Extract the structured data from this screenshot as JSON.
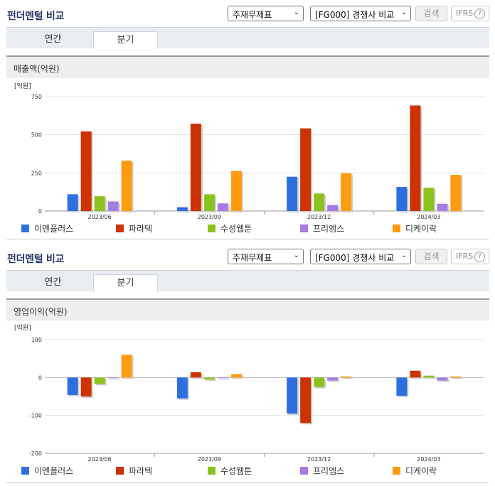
{
  "panels": [
    {
      "title": "펀더멘털 비교",
      "statement_select": "주재무제표",
      "peer_select": "[FG000] 경쟁사 비교",
      "search_label": "검색",
      "ifrs_label": "IFRS",
      "help_glyph": "?",
      "tabs": [
        {
          "label": "연간",
          "active": false
        },
        {
          "label": "분기",
          "active": true
        }
      ],
      "metric_title": "매출액(억원)"
    },
    {
      "title": "펀더멘털 비교",
      "statement_select": "주재무제표",
      "peer_select": "[FG000] 경쟁사 비교",
      "search_label": "검색",
      "ifrs_label": "IFRS",
      "help_glyph": "?",
      "tabs": [
        {
          "label": "연간",
          "active": false
        },
        {
          "label": "분기",
          "active": true
        }
      ],
      "metric_title": "영업이익(억원)"
    }
  ],
  "colors": {
    "이엔플러스": "#2e6fe0",
    "파라텍": "#cc3300",
    "수성웹툰": "#8cc21f",
    "프리엠스": "#a77de0",
    "디케이락": "#ff9b0f"
  },
  "chart_data": [
    {
      "type": "bar",
      "unit_label": "[억원]",
      "categories": [
        "2023/06",
        "2023/09",
        "2023/12",
        "2024/03"
      ],
      "ylim": [
        0,
        750
      ],
      "yticks": [
        0,
        250,
        500,
        750
      ],
      "grid": true,
      "legend_position": "bottom",
      "series": [
        {
          "name": "이엔플러스",
          "values": [
            110,
            25,
            225,
            158
          ]
        },
        {
          "name": "파라텍",
          "values": [
            522,
            573,
            542,
            692
          ]
        },
        {
          "name": "수성웹툰",
          "values": [
            97,
            110,
            115,
            153
          ]
        },
        {
          "name": "프리엠스",
          "values": [
            63,
            50,
            40,
            48
          ]
        },
        {
          "name": "디케이락",
          "values": [
            330,
            262,
            248,
            237
          ]
        }
      ]
    },
    {
      "type": "bar",
      "unit_label": "[억원]",
      "categories": [
        "2023/06",
        "2023/09",
        "2023/12",
        "2024/03"
      ],
      "ylim": [
        -200,
        100
      ],
      "yticks": [
        -200,
        -100,
        0,
        100
      ],
      "grid": true,
      "legend_position": "bottom",
      "series": [
        {
          "name": "이엔플러스",
          "values": [
            -46,
            -55,
            -95,
            -48
          ]
        },
        {
          "name": "파라텍",
          "values": [
            -50,
            14,
            -120,
            18
          ]
        },
        {
          "name": "수성웹툰",
          "values": [
            -17,
            -5,
            -25,
            5
          ]
        },
        {
          "name": "프리엠스",
          "values": [
            0,
            0,
            -8,
            -8
          ]
        },
        {
          "name": "디케이락",
          "values": [
            60,
            9,
            3,
            3
          ]
        }
      ]
    }
  ]
}
